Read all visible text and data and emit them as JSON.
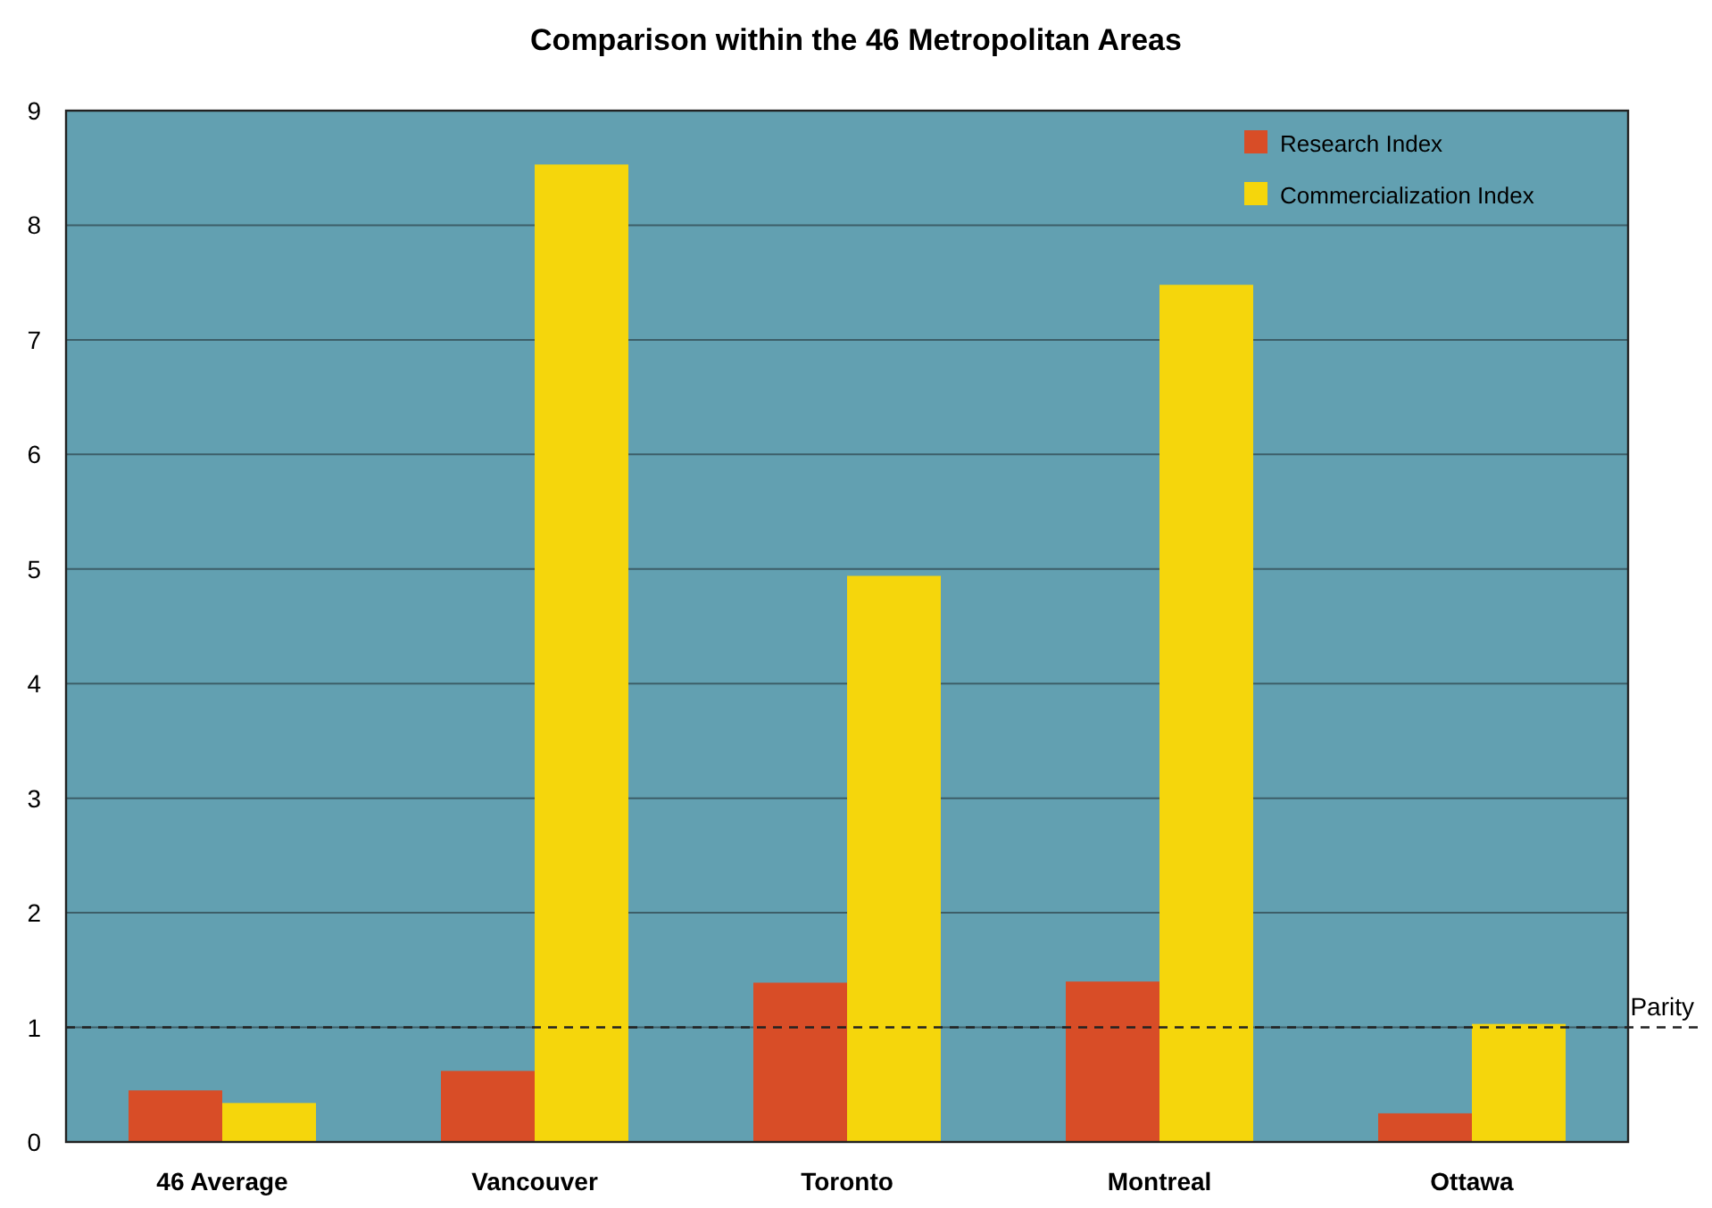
{
  "chart_data": {
    "type": "bar",
    "title": "Comparison within the 46 Metropolitan Areas",
    "categories": [
      "46 Average",
      "Vancouver",
      "Toronto",
      "Montreal",
      "Ottawa"
    ],
    "series": [
      {
        "name": "Research Index",
        "color": "#d84d27",
        "values": [
          0.45,
          0.62,
          1.39,
          1.4,
          0.25
        ]
      },
      {
        "name": "Commercialization Index",
        "color": "#f5d60c",
        "values": [
          0.34,
          8.53,
          4.94,
          7.48,
          1.03
        ]
      }
    ],
    "ylim": [
      0,
      9
    ],
    "yticks": [
      0,
      1,
      2,
      3,
      4,
      5,
      6,
      7,
      8,
      9
    ],
    "grid": "y",
    "legend": "top right",
    "ref_lines": [
      {
        "axis": "y",
        "value": 1,
        "label": "Parity",
        "color": "#222222",
        "line_style": "dashed"
      }
    ]
  }
}
